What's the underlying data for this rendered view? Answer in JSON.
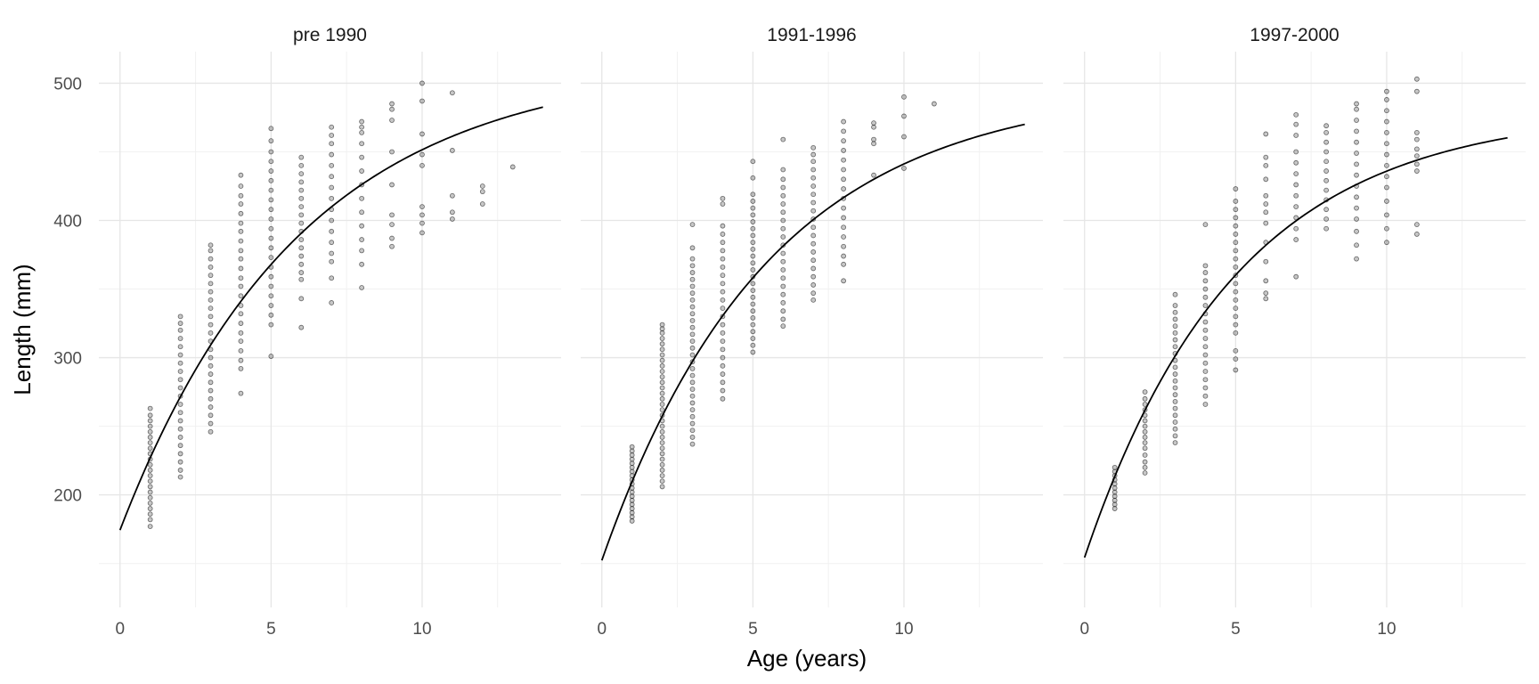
{
  "chart_data": {
    "type": "scatter",
    "xlabel": "Age (years)",
    "ylabel": "Length (mm)",
    "xlim": [
      -0.7,
      14.6
    ],
    "ylim": [
      118,
      523
    ],
    "x_ticks": [
      0,
      5,
      10
    ],
    "y_ticks": [
      200,
      300,
      400,
      500
    ],
    "grid": true,
    "legend": "none",
    "point_style": "small open circles, translucent black",
    "line_style": "solid black fitted von Bertalanffy curve",
    "panels": [
      {
        "title": "pre 1990",
        "fit": {
          "Linf": 515,
          "K": 0.168,
          "t0": -2.46,
          "x_range": [
            0,
            14
          ]
        },
        "observations": [
          {
            "age": 1,
            "lengths": [
              177,
              182,
              186,
              190,
              194,
              198,
              202,
              206,
              210,
              214,
              218,
              222,
              226,
              230,
              234,
              238,
              242,
              246,
              250,
              254,
              258,
              263
            ]
          },
          {
            "age": 2,
            "lengths": [
              213,
              218,
              224,
              230,
              236,
              242,
              248,
              254,
              260,
              266,
              272,
              278,
              284,
              290,
              296,
              302,
              308,
              314,
              320,
              325,
              330
            ]
          },
          {
            "age": 3,
            "lengths": [
              246,
              252,
              258,
              264,
              270,
              276,
              282,
              288,
              294,
              300,
              306,
              312,
              318,
              324,
              330,
              336,
              342,
              348,
              354,
              360,
              366,
              372,
              378,
              382
            ]
          },
          {
            "age": 4,
            "lengths": [
              274,
              292,
              298,
              305,
              312,
              318,
              325,
              332,
              338,
              345,
              352,
              358,
              365,
              372,
              378,
              385,
              392,
              398,
              405,
              412,
              418,
              425,
              433
            ]
          },
          {
            "age": 5,
            "lengths": [
              301,
              324,
              331,
              338,
              345,
              352,
              359,
              366,
              373,
              380,
              387,
              394,
              401,
              408,
              415,
              422,
              429,
              436,
              443,
              450,
              458,
              467
            ]
          },
          {
            "age": 6,
            "lengths": [
              322,
              343,
              357,
              362,
              368,
              374,
              380,
              386,
              392,
              398,
              404,
              410,
              416,
              422,
              428,
              434,
              440,
              446
            ]
          },
          {
            "age": 7,
            "lengths": [
              340,
              358,
              370,
              376,
              384,
              392,
              400,
              408,
              416,
              424,
              432,
              440,
              448,
              456,
              462,
              468
            ]
          },
          {
            "age": 8,
            "lengths": [
              351,
              368,
              378,
              386,
              396,
              406,
              416,
              426,
              436,
              446,
              456,
              464,
              468,
              472
            ]
          },
          {
            "age": 9,
            "lengths": [
              381,
              387,
              397,
              404,
              426,
              450,
              473,
              481,
              485
            ]
          },
          {
            "age": 10,
            "lengths": [
              391,
              398,
              404,
              410,
              440,
              448,
              463,
              487,
              500
            ]
          },
          {
            "age": 11,
            "lengths": [
              401,
              406,
              418,
              451,
              493
            ]
          },
          {
            "age": 12,
            "lengths": [
              412,
              421,
              425
            ]
          },
          {
            "age": 13,
            "lengths": [
              439
            ]
          }
        ]
      },
      {
        "title": "1991-1996",
        "fit": {
          "Linf": 497,
          "K": 0.182,
          "t0": -2.01,
          "x_range": [
            0,
            14
          ]
        },
        "observations": [
          {
            "age": 1,
            "lengths": [
              181,
              184,
              187,
              190,
              193,
              196,
              199,
              202,
              205,
              208,
              211,
              214,
              217,
              220,
              223,
              226,
              229,
              232,
              235
            ]
          },
          {
            "age": 2,
            "lengths": [
              206,
              210,
              214,
              218,
              222,
              226,
              230,
              234,
              238,
              242,
              246,
              250,
              254,
              258,
              262,
              266,
              270,
              274,
              278,
              282,
              286,
              290,
              294,
              298,
              302,
              306,
              310,
              314,
              318,
              321,
              324
            ]
          },
          {
            "age": 3,
            "lengths": [
              237,
              242,
              247,
              252,
              257,
              262,
              267,
              272,
              277,
              282,
              287,
              292,
              297,
              302,
              307,
              312,
              317,
              322,
              327,
              332,
              337,
              342,
              347,
              352,
              357,
              362,
              367,
              372,
              380,
              397
            ]
          },
          {
            "age": 4,
            "lengths": [
              270,
              276,
              282,
              288,
              294,
              300,
              306,
              312,
              318,
              324,
              330,
              336,
              342,
              348,
              354,
              360,
              366,
              372,
              378,
              384,
              390,
              396,
              412,
              416
            ]
          },
          {
            "age": 5,
            "lengths": [
              304,
              309,
              314,
              319,
              324,
              329,
              334,
              339,
              344,
              349,
              354,
              359,
              364,
              369,
              374,
              379,
              384,
              389,
              394,
              399,
              404,
              409,
              414,
              419,
              431,
              443
            ]
          },
          {
            "age": 6,
            "lengths": [
              323,
              328,
              334,
              340,
              346,
              352,
              358,
              364,
              370,
              376,
              382,
              388,
              394,
              400,
              406,
              412,
              418,
              424,
              430,
              437,
              459
            ]
          },
          {
            "age": 7,
            "lengths": [
              342,
              347,
              353,
              359,
              365,
              371,
              377,
              383,
              389,
              395,
              401,
              407,
              413,
              419,
              425,
              431,
              437,
              443,
              448,
              453
            ]
          },
          {
            "age": 8,
            "lengths": [
              356,
              368,
              374,
              381,
              388,
              395,
              402,
              409,
              416,
              423,
              430,
              437,
              444,
              451,
              458,
              465,
              472
            ]
          },
          {
            "age": 9,
            "lengths": [
              433,
              456,
              459,
              468,
              471
            ]
          },
          {
            "age": 10,
            "lengths": [
              438,
              461,
              476,
              490
            ]
          },
          {
            "age": 11,
            "lengths": [
              485
            ]
          }
        ]
      },
      {
        "title": "1997-2000",
        "fit": {
          "Linf": 480,
          "K": 0.2,
          "t0": -1.94,
          "x_range": [
            0,
            14
          ]
        },
        "observations": [
          {
            "age": 1,
            "lengths": [
              190,
              193,
              196,
              199,
              202,
              205,
              208,
              211,
              214,
              217,
              220
            ]
          },
          {
            "age": 2,
            "lengths": [
              216,
              220,
              224,
              229,
              234,
              238,
              242,
              246,
              250,
              254,
              258,
              262,
              266,
              270,
              275
            ]
          },
          {
            "age": 3,
            "lengths": [
              238,
              243,
              248,
              253,
              258,
              263,
              268,
              273,
              278,
              283,
              288,
              293,
              298,
              303,
              308,
              313,
              318,
              323,
              328,
              333,
              338,
              346
            ]
          },
          {
            "age": 4,
            "lengths": [
              266,
              272,
              278,
              284,
              290,
              296,
              302,
              308,
              314,
              320,
              326,
              332,
              338,
              344,
              350,
              356,
              362,
              367,
              397
            ]
          },
          {
            "age": 5,
            "lengths": [
              291,
              299,
              305,
              318,
              324,
              330,
              336,
              342,
              348,
              354,
              360,
              366,
              372,
              378,
              384,
              390,
              396,
              402,
              408,
              414,
              423
            ]
          },
          {
            "age": 6,
            "lengths": [
              343,
              347,
              356,
              370,
              384,
              398,
              406,
              412,
              418,
              430,
              440,
              446,
              463
            ]
          },
          {
            "age": 7,
            "lengths": [
              359,
              386,
              394,
              402,
              410,
              418,
              426,
              434,
              442,
              450,
              462,
              470,
              477
            ]
          },
          {
            "age": 8,
            "lengths": [
              394,
              401,
              408,
              415,
              422,
              429,
              436,
              443,
              450,
              457,
              464,
              469
            ]
          },
          {
            "age": 9,
            "lengths": [
              372,
              382,
              392,
              401,
              409,
              417,
              425,
              433,
              441,
              449,
              457,
              465,
              473,
              481,
              485
            ]
          },
          {
            "age": 10,
            "lengths": [
              384,
              394,
              404,
              414,
              424,
              432,
              440,
              448,
              456,
              464,
              472,
              480,
              488,
              494
            ]
          },
          {
            "age": 11,
            "lengths": [
              390,
              397,
              436,
              441,
              447,
              452,
              459,
              464,
              494,
              503
            ]
          }
        ]
      }
    ]
  }
}
